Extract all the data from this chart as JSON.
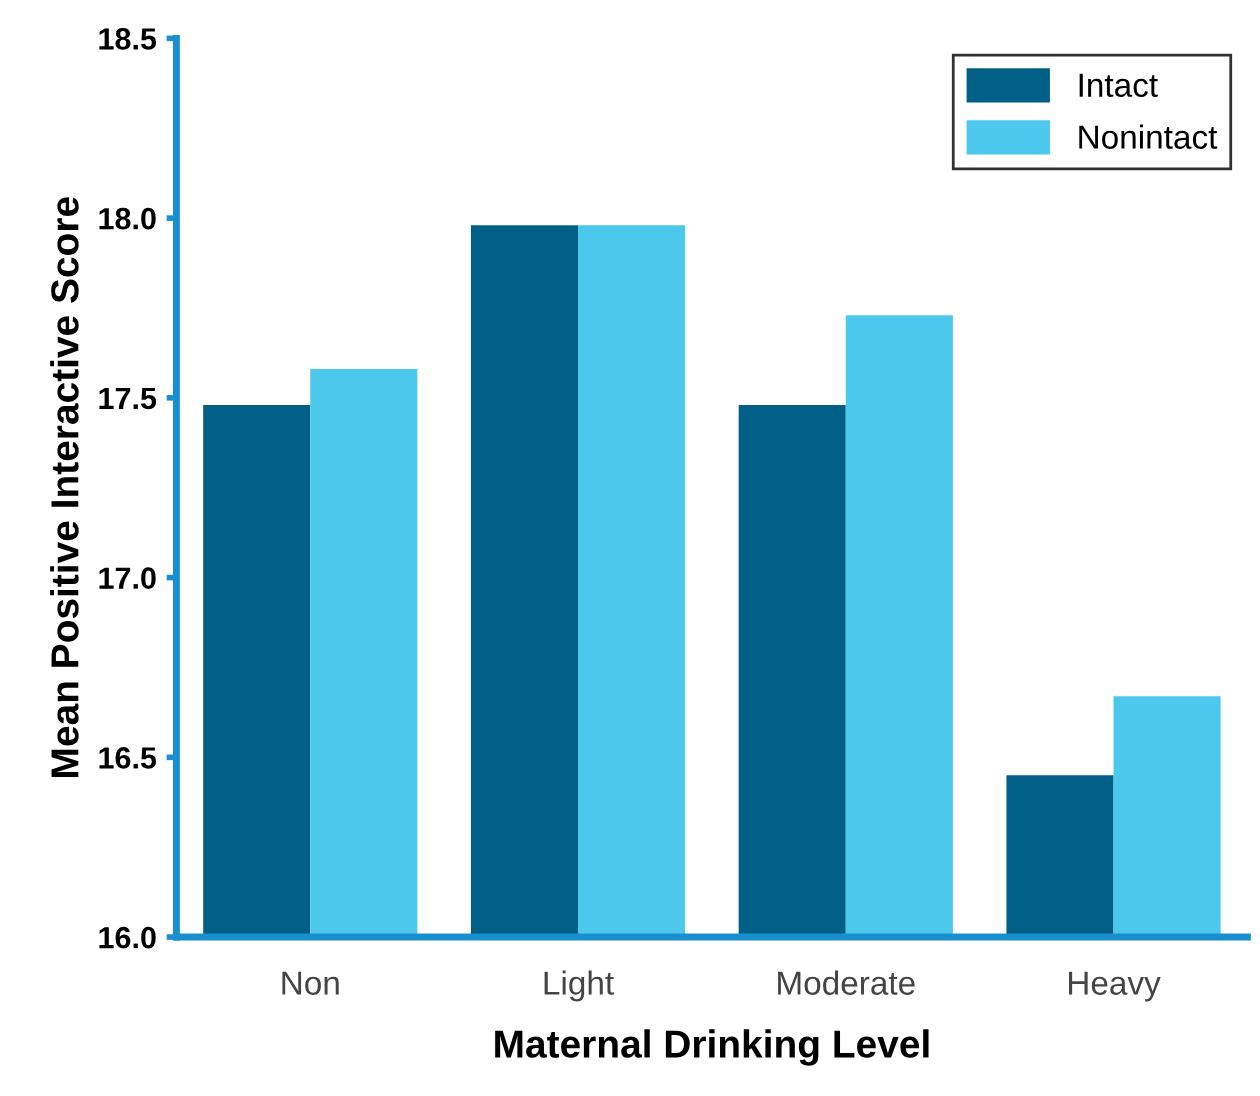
{
  "chart_data": {
    "type": "bar",
    "xlabel": "Maternal Drinking Level",
    "ylabel": "Mean Positive Interactive Score",
    "categories": [
      "Non",
      "Light",
      "Moderate",
      "Heavy"
    ],
    "series": [
      {
        "name": "Intact",
        "color": "#005f87",
        "values": [
          17.48,
          17.98,
          17.48,
          16.45
        ]
      },
      {
        "name": "Nonintact",
        "color": "#4bc8ec",
        "values": [
          17.58,
          17.98,
          17.73,
          16.67
        ]
      }
    ],
    "ylim": [
      16.0,
      18.5
    ],
    "yticks": [
      {
        "value": 16.0,
        "label": "16.0"
      },
      {
        "value": 16.5,
        "label": "16.5"
      },
      {
        "value": 17.0,
        "label": "17.0"
      },
      {
        "value": 17.5,
        "label": "17.5"
      },
      {
        "value": 18.0,
        "label": "18.0"
      },
      {
        "value": 18.5,
        "label": "18.5"
      }
    ],
    "grid": false,
    "legend": "top right"
  }
}
